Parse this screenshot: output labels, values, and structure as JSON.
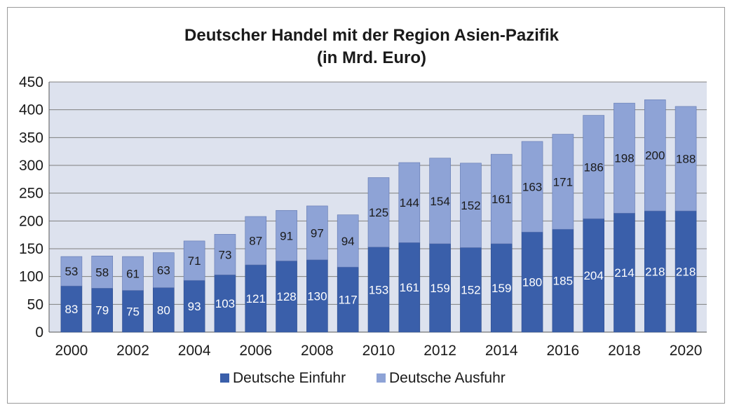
{
  "chart_data": {
    "type": "bar",
    "stacked": true,
    "title_lines": [
      "Deutscher Handel mit der Region Asien-Pazifik",
      "(in Mrd. Euro)"
    ],
    "categories": [
      "2000",
      "2001",
      "2002",
      "2003",
      "2004",
      "2005",
      "2006",
      "2007",
      "2008",
      "2009",
      "2010",
      "2011",
      "2012",
      "2013",
      "2014",
      "2015",
      "2016",
      "2017",
      "2018",
      "2019",
      "2020"
    ],
    "x_tick_labels": [
      "2000",
      "",
      "2002",
      "",
      "2004",
      "",
      "2006",
      "",
      "2008",
      "",
      "2010",
      "",
      "2012",
      "",
      "2014",
      "",
      "2016",
      "",
      "2018",
      "",
      "2020"
    ],
    "series": [
      {
        "name": "Deutsche Einfuhr",
        "color": "#3a5faa",
        "values": [
          83,
          79,
          75,
          80,
          93,
          103,
          121,
          128,
          130,
          117,
          153,
          161,
          159,
          152,
          159,
          180,
          185,
          204,
          214,
          218,
          218
        ]
      },
      {
        "name": "Deutsche Ausfuhr",
        "color": "#8ea3d6",
        "values": [
          53,
          58,
          61,
          63,
          71,
          73,
          87,
          91,
          97,
          94,
          125,
          144,
          154,
          152,
          161,
          163,
          171,
          186,
          198,
          200,
          188
        ]
      }
    ],
    "ylim": [
      0,
      450
    ],
    "yticks": [
      0,
      50,
      100,
      150,
      200,
      250,
      300,
      350,
      400,
      450
    ],
    "grid": true,
    "legend_position": "bottom",
    "plot_background": "#dde2ee"
  }
}
